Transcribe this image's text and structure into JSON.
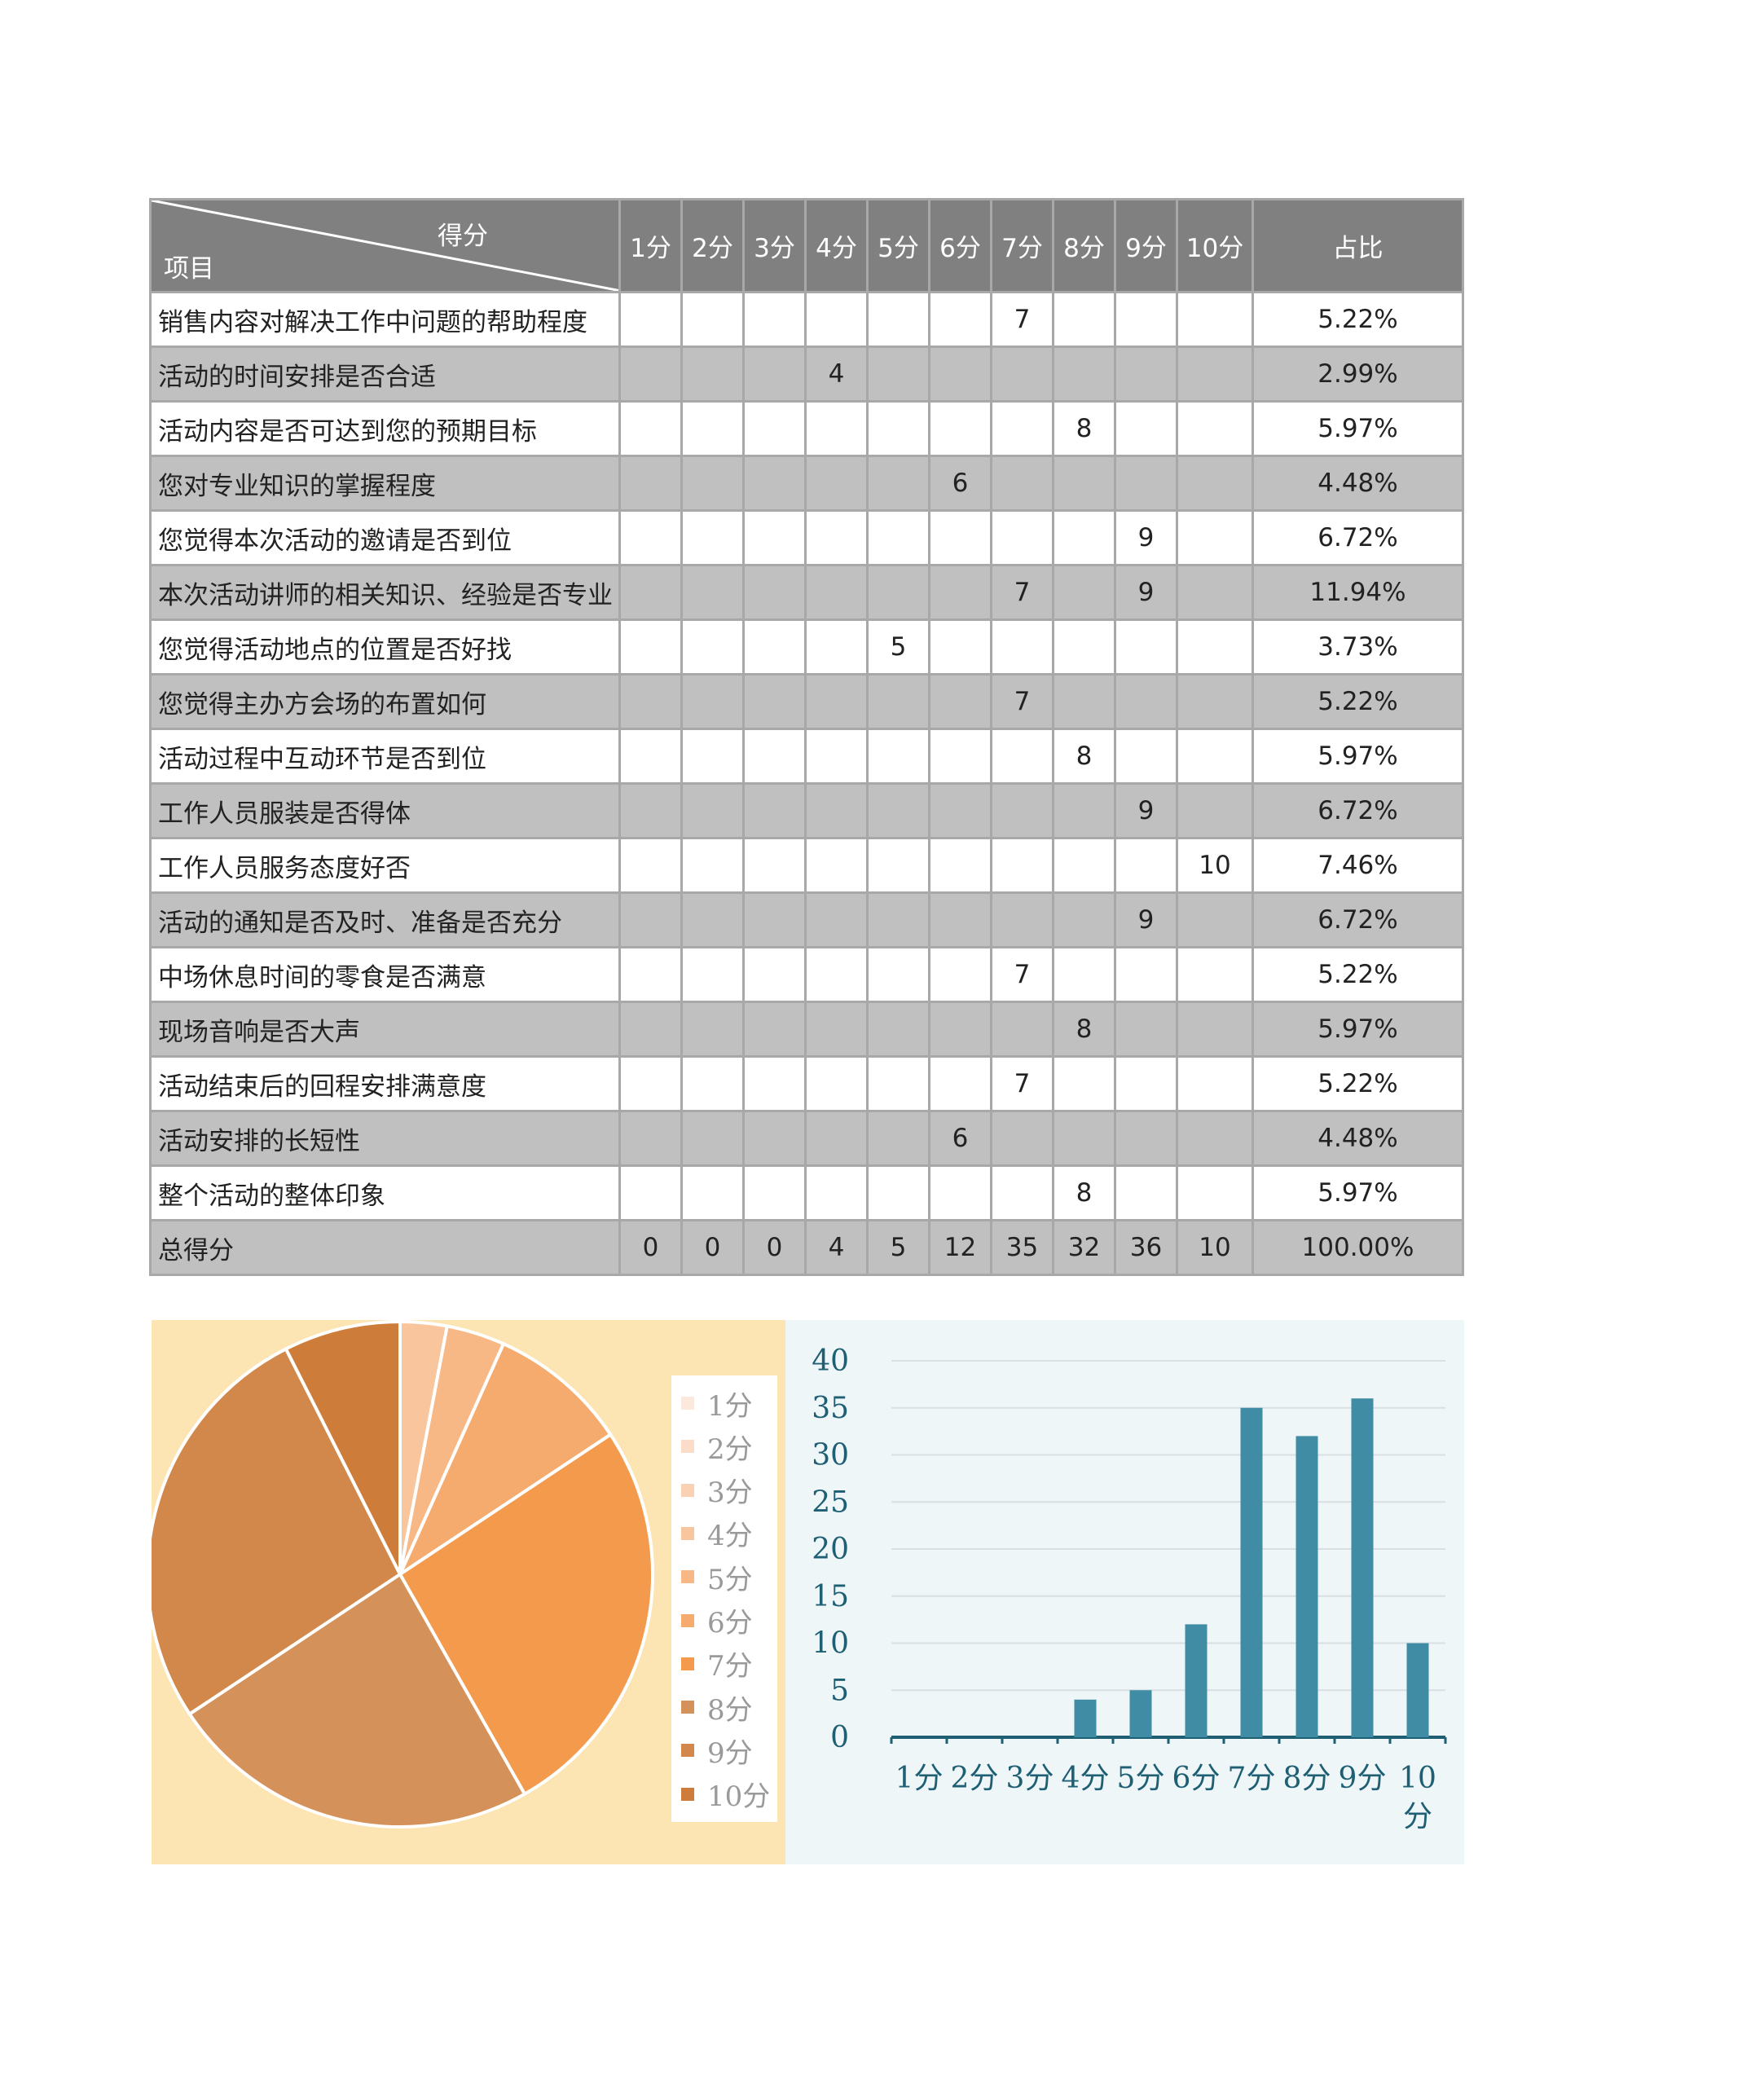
{
  "table": {
    "header": {
      "score": "得分",
      "item": "项目",
      "columns": [
        "1分",
        "2分",
        "3分",
        "4分",
        "5分",
        "6分",
        "7分",
        "8分",
        "9分",
        "10分"
      ],
      "ratio": "占比"
    },
    "rows": [
      {
        "item": "销售内容对解决工作中问题的帮助程度",
        "scores": [
          "",
          "",
          "",
          "",
          "",
          "",
          "7",
          "",
          "",
          ""
        ],
        "ratio": "5.22%"
      },
      {
        "item": "活动的时间安排是否合适",
        "scores": [
          "",
          "",
          "",
          "4",
          "",
          "",
          "",
          "",
          "",
          ""
        ],
        "ratio": "2.99%"
      },
      {
        "item": "活动内容是否可达到您的预期目标",
        "scores": [
          "",
          "",
          "",
          "",
          "",
          "",
          "",
          "8",
          "",
          ""
        ],
        "ratio": "5.97%"
      },
      {
        "item": "您对专业知识的掌握程度",
        "scores": [
          "",
          "",
          "",
          "",
          "",
          "6",
          "",
          "",
          "",
          ""
        ],
        "ratio": "4.48%"
      },
      {
        "item": "您觉得本次活动的邀请是否到位",
        "scores": [
          "",
          "",
          "",
          "",
          "",
          "",
          "",
          "",
          "9",
          ""
        ],
        "ratio": "6.72%"
      },
      {
        "item": "本次活动讲师的相关知识、经验是否专业",
        "scores": [
          "",
          "",
          "",
          "",
          "",
          "",
          "7",
          "",
          "9",
          ""
        ],
        "ratio": "11.94%"
      },
      {
        "item": "您觉得活动地点的位置是否好找",
        "scores": [
          "",
          "",
          "",
          "",
          "5",
          "",
          "",
          "",
          "",
          ""
        ],
        "ratio": "3.73%"
      },
      {
        "item": "您觉得主办方会场的布置如何",
        "scores": [
          "",
          "",
          "",
          "",
          "",
          "",
          "7",
          "",
          "",
          ""
        ],
        "ratio": "5.22%"
      },
      {
        "item": "活动过程中互动环节是否到位",
        "scores": [
          "",
          "",
          "",
          "",
          "",
          "",
          "",
          "8",
          "",
          ""
        ],
        "ratio": "5.97%"
      },
      {
        "item": "工作人员服装是否得体",
        "scores": [
          "",
          "",
          "",
          "",
          "",
          "",
          "",
          "",
          "9",
          ""
        ],
        "ratio": "6.72%"
      },
      {
        "item": "工作人员服务态度好否",
        "scores": [
          "",
          "",
          "",
          "",
          "",
          "",
          "",
          "",
          "",
          "10"
        ],
        "ratio": "7.46%"
      },
      {
        "item": "活动的通知是否及时、准备是否充分",
        "scores": [
          "",
          "",
          "",
          "",
          "",
          "",
          "",
          "",
          "9",
          ""
        ],
        "ratio": "6.72%"
      },
      {
        "item": "中场休息时间的零食是否满意",
        "scores": [
          "",
          "",
          "",
          "",
          "",
          "",
          "7",
          "",
          "",
          ""
        ],
        "ratio": "5.22%"
      },
      {
        "item": "现场音响是否大声",
        "scores": [
          "",
          "",
          "",
          "",
          "",
          "",
          "",
          "8",
          "",
          ""
        ],
        "ratio": "5.97%"
      },
      {
        "item": "活动结束后的回程安排满意度",
        "scores": [
          "",
          "",
          "",
          "",
          "",
          "",
          "7",
          "",
          "",
          ""
        ],
        "ratio": "5.22%"
      },
      {
        "item": "活动安排的长短性",
        "scores": [
          "",
          "",
          "",
          "",
          "",
          "6",
          "",
          "",
          "",
          ""
        ],
        "ratio": "4.48%"
      },
      {
        "item": "整个活动的整体印象",
        "scores": [
          "",
          "",
          "",
          "",
          "",
          "",
          "",
          "8",
          "",
          ""
        ],
        "ratio": "5.97%"
      }
    ],
    "total": {
      "label": "总得分",
      "scores": [
        "0",
        "0",
        "0",
        "4",
        "5",
        "12",
        "35",
        "32",
        "36",
        "10"
      ],
      "ratio": "100.00%"
    }
  },
  "chart_data": [
    {
      "type": "pie",
      "categories": [
        "1分",
        "2分",
        "3分",
        "4分",
        "5分",
        "6分",
        "7分",
        "8分",
        "9分",
        "10分"
      ],
      "values": [
        0,
        0,
        0,
        4,
        5,
        12,
        35,
        32,
        36,
        10
      ],
      "colors": [
        "#fbe9de",
        "#fbdcc8",
        "#fad1b3",
        "#f8c59c",
        "#f7b886",
        "#f5aa6e",
        "#f39a4d",
        "#d5915a",
        "#d2884a",
        "#ce7c3a"
      ],
      "legend": "right"
    },
    {
      "type": "bar",
      "categories": [
        "1分",
        "2分",
        "3分",
        "4分",
        "5分",
        "6分",
        "7分",
        "8分",
        "9分",
        "10分"
      ],
      "values": [
        0,
        0,
        0,
        4,
        5,
        12,
        35,
        32,
        36,
        10
      ],
      "ylim": [
        0,
        40
      ],
      "yticks": [
        0,
        5,
        10,
        15,
        20,
        25,
        30,
        35,
        40
      ],
      "color": "#3f8ca4",
      "grid": true
    }
  ],
  "colors": {
    "header_bg": "#808080",
    "shade_row_bg": "#c0c0c0",
    "pie_panel_bg": "#fce4b3",
    "bar_panel_bg": "#eef6f8",
    "bar_axis_text": "#1e5f74"
  }
}
